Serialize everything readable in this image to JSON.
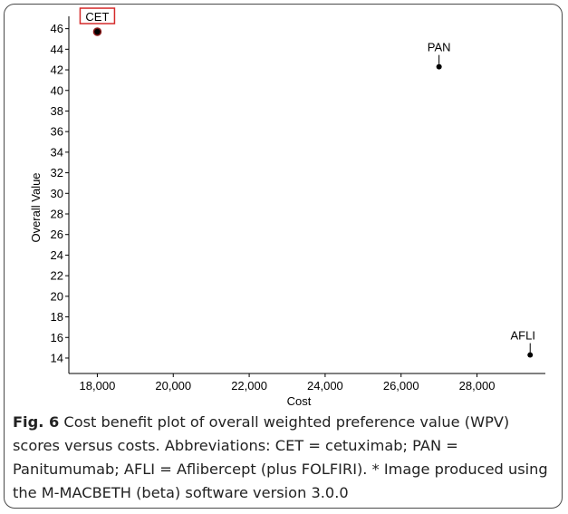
{
  "chart_data": {
    "type": "scatter",
    "xlabel": "Cost",
    "ylabel": "Overall Value",
    "xlim": [
      17250,
      29800
    ],
    "ylim": [
      12.5,
      47.2
    ],
    "xticks": [
      18000,
      20000,
      22000,
      24000,
      26000,
      28000
    ],
    "xtick_labels": [
      "18,000",
      "20,000",
      "22,000",
      "24,000",
      "26,000",
      "28,000"
    ],
    "yticks": [
      14,
      16,
      18,
      20,
      22,
      24,
      26,
      28,
      30,
      32,
      34,
      36,
      38,
      40,
      42,
      44,
      46
    ],
    "grid": false,
    "points": [
      {
        "label": "CET",
        "x": 18000,
        "y": 45.7,
        "highlighted": true
      },
      {
        "label": "PAN",
        "x": 27000,
        "y": 42.3,
        "highlighted": false
      },
      {
        "label": "AFLI",
        "x": 29400,
        "y": 14.3,
        "highlighted": false
      }
    ],
    "colors": {
      "point": "#000000",
      "highlight_box": "#d42a2a",
      "highlight_point": "#8b1a1a"
    }
  },
  "caption": {
    "label": "Fig. 6",
    "text": " Cost benefit plot of overall weighted preference value (WPV) scores versus costs. Abbreviations: CET = cetuximab; PAN = Panitumumab; AFLI = Aflibercept (plus FOLFIRI). * Image produced using the M-MACBETH (beta) software version 3.0.0"
  }
}
